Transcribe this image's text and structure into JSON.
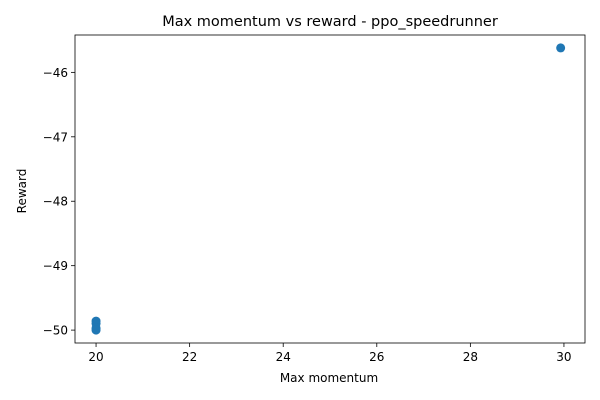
{
  "chart_data": {
    "type": "scatter",
    "title": "Max momentum vs reward - ppo_speedrunner",
    "xlabel": "Max momentum",
    "ylabel": "Reward",
    "xlim": [
      19.55,
      30.45
    ],
    "ylim": [
      -50.2,
      -45.42
    ],
    "xticks": [
      20,
      22,
      24,
      26,
      28,
      30
    ],
    "yticks": [
      -50,
      -49,
      -48,
      -47,
      -46
    ],
    "xtick_labels": [
      "20",
      "22",
      "24",
      "26",
      "28",
      "30"
    ],
    "ytick_labels": [
      "−50",
      "−49",
      "−48",
      "−47",
      "−46"
    ],
    "grid": false,
    "marker_color": "#1f77b4",
    "points": [
      {
        "x": 20.0,
        "y": -49.86
      },
      {
        "x": 20.0,
        "y": -49.9
      },
      {
        "x": 20.0,
        "y": -49.97
      },
      {
        "x": 20.0,
        "y": -50.0
      },
      {
        "x": 29.93,
        "y": -45.62
      }
    ]
  }
}
